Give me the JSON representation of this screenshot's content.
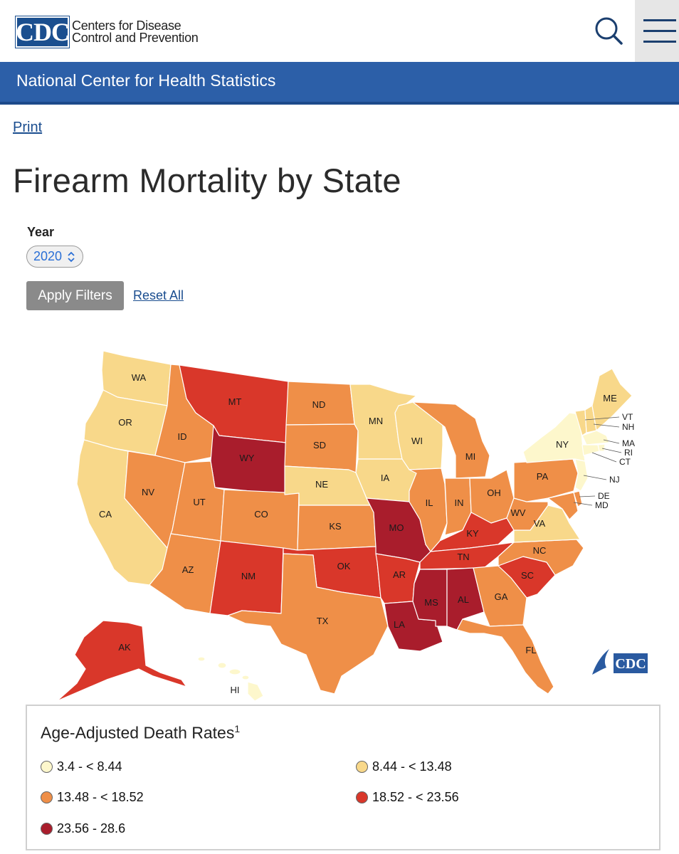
{
  "header": {
    "logo_abbr": "CDC",
    "logo_line1": "Centers for Disease",
    "logo_line2": "Control and Prevention",
    "banner": "National Center for Health Statistics"
  },
  "page": {
    "print_label": "Print",
    "title": "Firearm Mortality by State"
  },
  "filters": {
    "year_label": "Year",
    "year_value": "2020",
    "apply_label": "Apply Filters",
    "reset_label": "Reset All"
  },
  "map_watermark": "CDC",
  "colors": {
    "c1": "#fdf7cc",
    "c2": "#f8d88a",
    "c3": "#ef8f48",
    "c4": "#d9372a",
    "c5": "#a91d2c",
    "banner": "#2c5fa8"
  },
  "legend": {
    "title": "Age-Adjusted Death Rates",
    "footnote": "1",
    "items": [
      {
        "label": "3.4 - < 8.44",
        "color": "#fdf7cc"
      },
      {
        "label": "8.44 - < 13.48",
        "color": "#f8d88a"
      },
      {
        "label": "13.48 - < 18.52",
        "color": "#ef8f48"
      },
      {
        "label": "18.52 - < 23.56",
        "color": "#d9372a"
      },
      {
        "label": "23.56 - 28.6",
        "color": "#a91d2c"
      }
    ]
  },
  "states": [
    {
      "abbr": "WA",
      "cls": 2
    },
    {
      "abbr": "OR",
      "cls": 2
    },
    {
      "abbr": "CA",
      "cls": 2
    },
    {
      "abbr": "ID",
      "cls": 3
    },
    {
      "abbr": "NV",
      "cls": 3
    },
    {
      "abbr": "MT",
      "cls": 4
    },
    {
      "abbr": "WY",
      "cls": 5
    },
    {
      "abbr": "UT",
      "cls": 3
    },
    {
      "abbr": "AZ",
      "cls": 3
    },
    {
      "abbr": "CO",
      "cls": 3
    },
    {
      "abbr": "NM",
      "cls": 4
    },
    {
      "abbr": "ND",
      "cls": 3
    },
    {
      "abbr": "SD",
      "cls": 3
    },
    {
      "abbr": "NE",
      "cls": 2
    },
    {
      "abbr": "KS",
      "cls": 3
    },
    {
      "abbr": "OK",
      "cls": 4
    },
    {
      "abbr": "TX",
      "cls": 3
    },
    {
      "abbr": "MN",
      "cls": 2
    },
    {
      "abbr": "IA",
      "cls": 2
    },
    {
      "abbr": "MO",
      "cls": 5
    },
    {
      "abbr": "AR",
      "cls": 4
    },
    {
      "abbr": "LA",
      "cls": 5
    },
    {
      "abbr": "WI",
      "cls": 2
    },
    {
      "abbr": "IL",
      "cls": 3
    },
    {
      "abbr": "MI",
      "cls": 3
    },
    {
      "abbr": "IN",
      "cls": 3
    },
    {
      "abbr": "OH",
      "cls": 3
    },
    {
      "abbr": "KY",
      "cls": 4
    },
    {
      "abbr": "TN",
      "cls": 4
    },
    {
      "abbr": "MS",
      "cls": 5
    },
    {
      "abbr": "AL",
      "cls": 5
    },
    {
      "abbr": "GA",
      "cls": 3
    },
    {
      "abbr": "FL",
      "cls": 3
    },
    {
      "abbr": "SC",
      "cls": 4
    },
    {
      "abbr": "NC",
      "cls": 3
    },
    {
      "abbr": "VA",
      "cls": 2
    },
    {
      "abbr": "WV",
      "cls": 3
    },
    {
      "abbr": "PA",
      "cls": 3
    },
    {
      "abbr": "NY",
      "cls": 1
    },
    {
      "abbr": "ME",
      "cls": 2
    },
    {
      "abbr": "VT",
      "cls": 2
    },
    {
      "abbr": "NH",
      "cls": 2
    },
    {
      "abbr": "MA",
      "cls": 1
    },
    {
      "abbr": "RI",
      "cls": 1
    },
    {
      "abbr": "CT",
      "cls": 1
    },
    {
      "abbr": "NJ",
      "cls": 1
    },
    {
      "abbr": "DE",
      "cls": 3
    },
    {
      "abbr": "MD",
      "cls": 3
    },
    {
      "abbr": "AK",
      "cls": 4
    },
    {
      "abbr": "HI",
      "cls": 1
    }
  ]
}
